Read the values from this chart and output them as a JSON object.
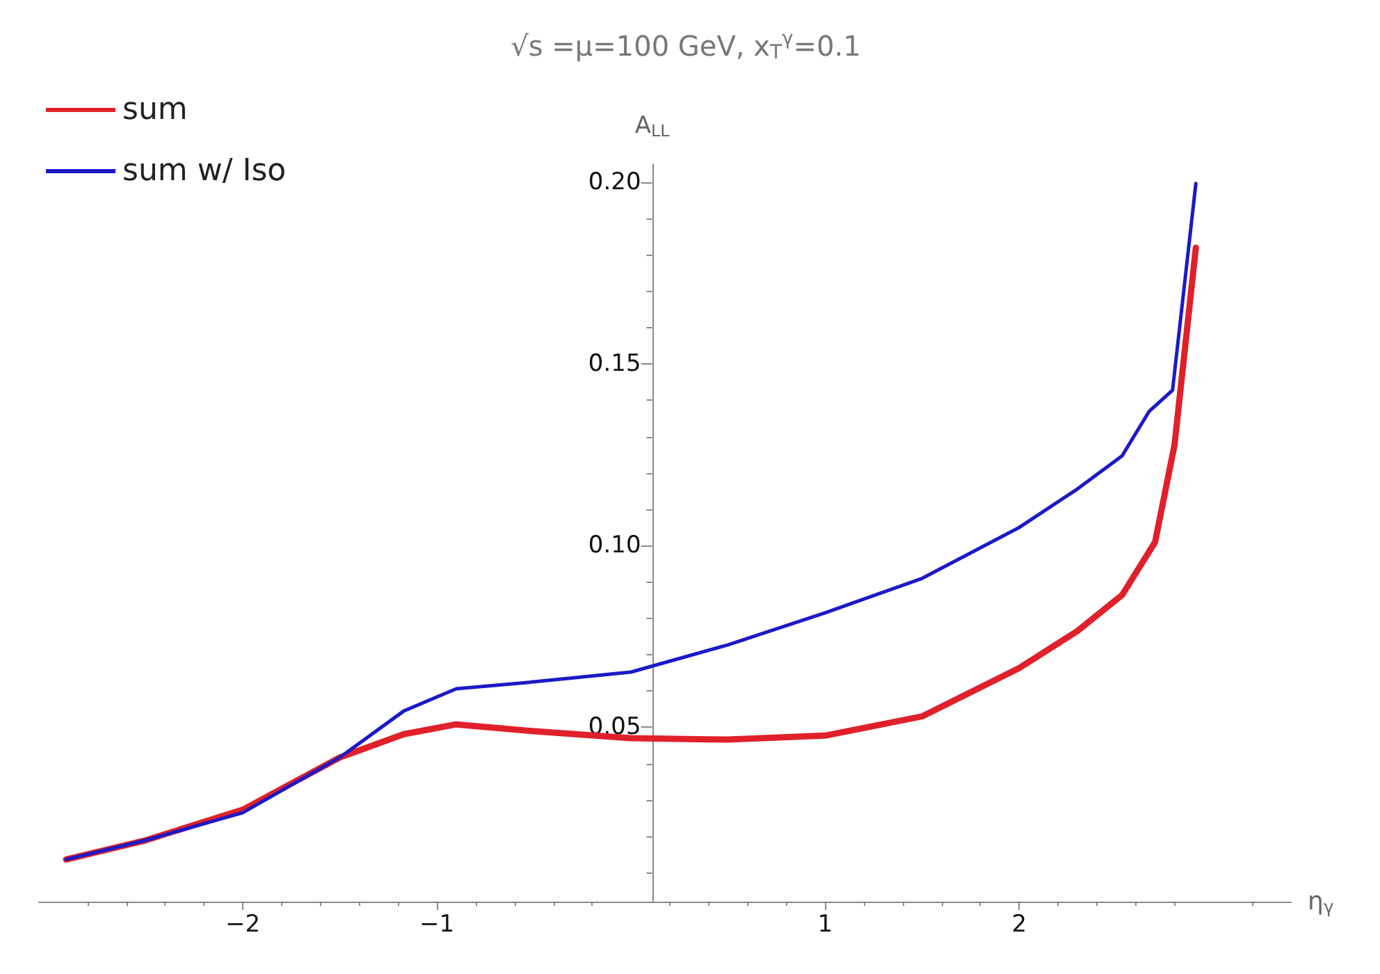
{
  "chart_data": {
    "type": "line",
    "title": "√s =μ=100 GeV, x$_{T}$$^{γ}$=0.1",
    "xlabel": "η$_{γ}$",
    "ylabel": "A$_{LL}$",
    "xlim": [
      -3.05,
      3.4
    ],
    "ylim": [
      0.002,
      0.205
    ],
    "xticks": [
      -2,
      -1,
      1,
      2
    ],
    "yticks": [
      {
        "value": 0.05,
        "label": "0.05"
      },
      {
        "value": 0.1,
        "label": "0.10"
      },
      {
        "value": 0.15,
        "label": "0.15"
      },
      {
        "value": 0.2,
        "label": "0.20"
      }
    ],
    "grid": false,
    "legend": "top left",
    "marker": "none",
    "line_style": "solid",
    "series": [
      {
        "name": "sum",
        "color": "#e0202a",
        "x": [
          -2.91,
          -2.5,
          -2.0,
          -1.5,
          -1.17,
          -0.9,
          -0.5,
          0,
          0.5,
          1.0,
          1.5,
          2.0,
          2.3,
          2.53,
          2.7,
          2.8,
          2.91
        ],
        "values": [
          0.0136,
          0.0189,
          0.0273,
          0.0417,
          0.0481,
          0.0508,
          0.0489,
          0.047,
          0.0466,
          0.0477,
          0.053,
          0.0663,
          0.0765,
          0.0864,
          0.101,
          0.1277,
          0.182
        ]
      },
      {
        "name": "sum w/ Iso",
        "color": "#1a1ac8",
        "x": [
          -2.91,
          -2.5,
          -2.0,
          -1.5,
          -1.17,
          -0.9,
          -0.5,
          0,
          0.5,
          1.0,
          1.5,
          2.0,
          2.3,
          2.53,
          2.67,
          2.79,
          2.91
        ],
        "values": [
          0.0136,
          0.0189,
          0.0265,
          0.0417,
          0.0545,
          0.0606,
          0.0625,
          0.0652,
          0.0727,
          0.0815,
          0.091,
          0.105,
          0.1156,
          0.1247,
          0.137,
          0.1428,
          0.1997
        ]
      }
    ]
  }
}
